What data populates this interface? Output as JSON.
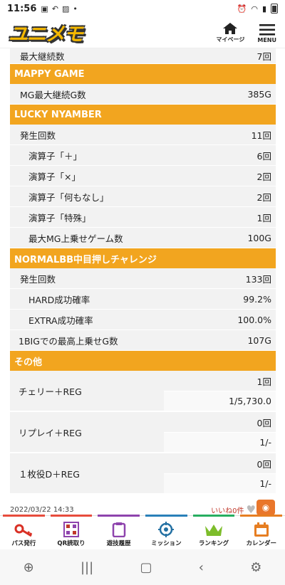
{
  "status_bar": {
    "time": "11:56"
  },
  "header": {
    "logo": "ユニメモ",
    "mypage_label": "マイページ",
    "menu_label": "MENU"
  },
  "top_row": {
    "label": "最大継続数",
    "value": "7回"
  },
  "sections": {
    "mappy": {
      "title": "MAPPY GAME",
      "rows": [
        {
          "label": "MG最大継続G数",
          "value": "385G"
        }
      ]
    },
    "lucky": {
      "title": "LUCKY NYAMBER",
      "rows": [
        {
          "label": "発生回数",
          "value": "11回"
        },
        {
          "label": "演算子「＋」",
          "value": "6回"
        },
        {
          "label": "演算子「×」",
          "value": "2回"
        },
        {
          "label": "演算子「何もなし」",
          "value": "2回"
        },
        {
          "label": "演算子「特殊」",
          "value": "1回"
        },
        {
          "label": "最大MG上乗せゲーム数",
          "value": "100G"
        }
      ]
    },
    "normal": {
      "title": "NORMALBB中目押しチャレンジ",
      "rows": [
        {
          "label": "発生回数",
          "value": "133回"
        },
        {
          "label": "HARD成功確率",
          "value": "99.2%"
        },
        {
          "label": "EXTRA成功確率",
          "value": "100.0%"
        },
        {
          "label": "1BIGでの最高上乗せG数",
          "value": "107G"
        }
      ]
    },
    "other": {
      "title": "その他",
      "groups": [
        {
          "label": "チェリー＋REG",
          "count": "1回",
          "prob": "1/5,730.0"
        },
        {
          "label": "リプレイ＋REG",
          "count": "0回",
          "prob": "1/-"
        },
        {
          "label": "１枚役D＋REG",
          "count": "0回",
          "prob": "1/-"
        }
      ]
    }
  },
  "footer": {
    "date": "2022/03/22 14:33",
    "likes": "いいね0件"
  },
  "bottom_nav": [
    {
      "label": "パス発行",
      "color": "#e74c3c"
    },
    {
      "label": "QR読取り",
      "color": "#e74c3c"
    },
    {
      "label": "遊技履歴",
      "color": "#8e44ad"
    },
    {
      "label": "ミッション",
      "color": "#2980b9"
    },
    {
      "label": "ランキング",
      "color": "#27ae60"
    },
    {
      "label": "カレンダー",
      "color": "#e67e22"
    }
  ]
}
